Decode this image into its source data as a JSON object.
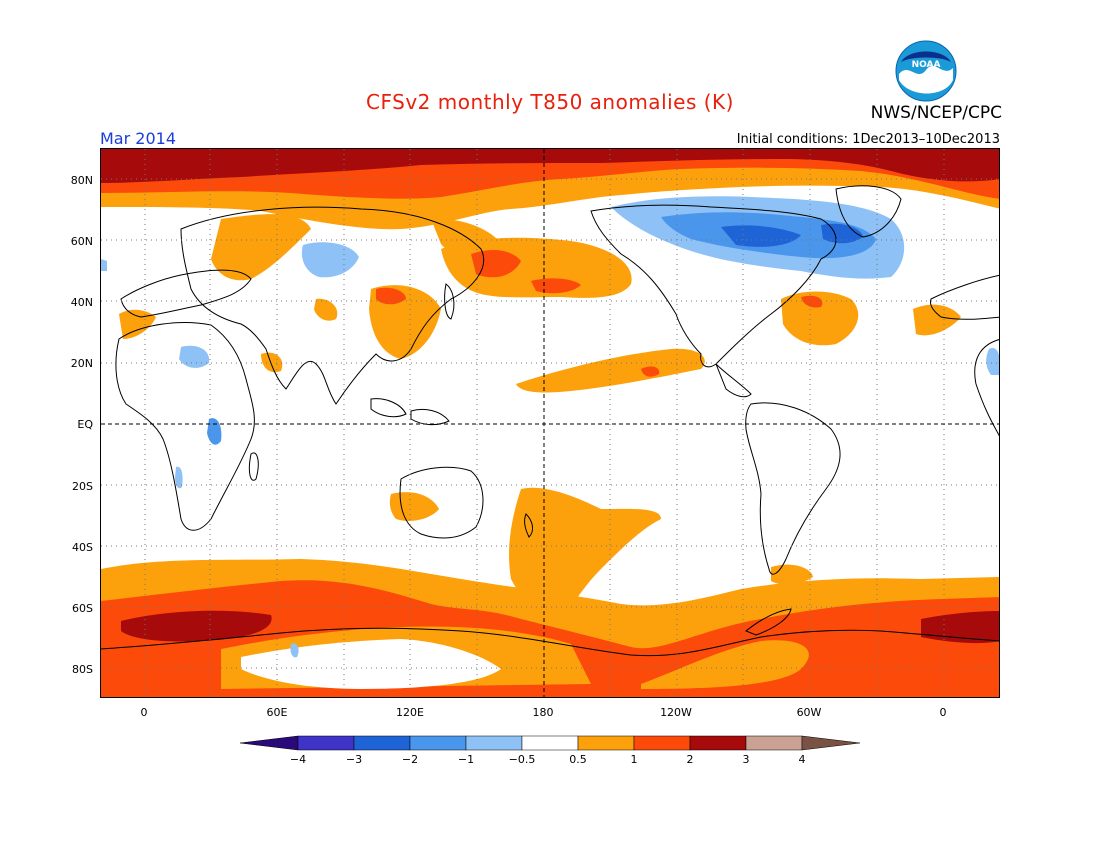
{
  "header": {
    "title": "CFSv2 monthly T850 anomalies (K)",
    "target_month": "Mar 2014",
    "initial_conditions": "Initial conditions: 1Dec2013–10Dec2013",
    "agency": "NWS/NCEP/CPC",
    "logo_text": "NOAA"
  },
  "map": {
    "projection": "equirectangular",
    "central_longitude": 180,
    "lat_labels": [
      "80N",
      "60N",
      "40N",
      "20N",
      "EQ",
      "20S",
      "40S",
      "60S",
      "80S"
    ],
    "lon_labels": [
      "0",
      "60E",
      "120E",
      "180",
      "120W",
      "60W",
      "0"
    ],
    "reference_lines": [
      "Equator",
      "180 meridian"
    ]
  },
  "colorbar": {
    "tick_labels": [
      "−4",
      "−3",
      "−2",
      "−1",
      "−0.5",
      "0.5",
      "1",
      "2",
      "3",
      "4"
    ],
    "units": "K",
    "colors": {
      "below_-4": "#2a0a7a",
      "-4_to_-3": "#3f33c8",
      "-3_to_-2": "#1e64d6",
      "-2_to_-1": "#4a96ec",
      "-1_to_-0.5": "#8ec2f7",
      "-0.5_to_0.5": "#ffffff",
      "0.5_to_1": "#fca10c",
      "1_to_2": "#fb4a0a",
      "2_to_3": "#a60a0a",
      "3_to_4": "#c9a294",
      "above_4": "#7a5244"
    }
  }
}
